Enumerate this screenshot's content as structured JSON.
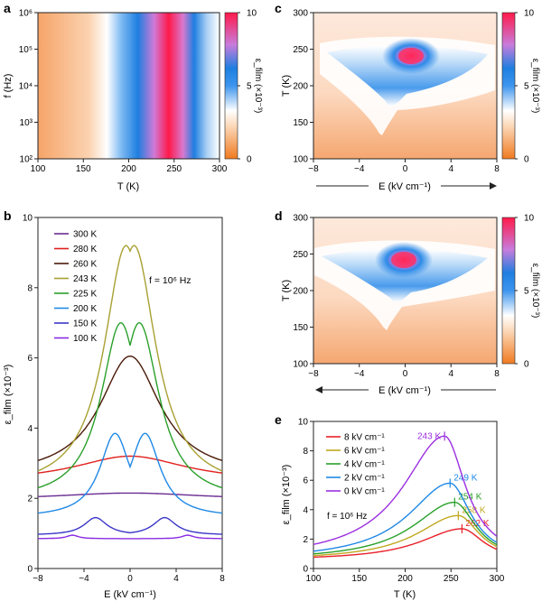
{
  "chart_data": [
    {
      "panel": "a",
      "type": "heatmap",
      "xlabel": "T (K)",
      "ylabel": "f (Hz)",
      "colorbar_label": "ε_film (×10⁻³)",
      "xlim": [
        100,
        300
      ],
      "xticks": [
        "100",
        "150",
        "200",
        "250",
        "300"
      ],
      "ylim_log10": [
        2,
        6
      ],
      "yticks": [
        "10²",
        "10³",
        "10⁴",
        "10⁵",
        "10⁶"
      ],
      "clim": [
        0,
        10
      ],
      "colorbar_ticks": [
        "0",
        "5",
        "10"
      ],
      "colormap": [
        "#f07a20",
        "#ffffff",
        "#1e7fe0",
        "#ff1a4a"
      ],
      "peak_T": 245
    },
    {
      "panel": "b",
      "type": "line",
      "xlabel": "E (kV cm⁻¹)",
      "ylabel": "ε_film (×10⁻³)",
      "xlim": [
        -8,
        8
      ],
      "ylim": [
        0,
        10
      ],
      "xticks": [
        "−8",
        "−4",
        "0",
        "4",
        "8"
      ],
      "yticks": [
        "0",
        "2",
        "4",
        "6",
        "8",
        "10"
      ],
      "annotation": "f = 10⁶ Hz",
      "legend_position": "top-left",
      "series": [
        {
          "name": "300 K",
          "color": "#6a2c91",
          "peaks": [
            0
          ],
          "height": 2.15,
          "base": 1.95,
          "width": 8
        },
        {
          "name": "280 K",
          "color": "#e0201e",
          "peaks": [
            0
          ],
          "height": 3.2,
          "base": 2.45,
          "width": 6
        },
        {
          "name": "260 K",
          "color": "#4a1a08",
          "peaks": [
            0
          ],
          "height": 6.05,
          "base": 2.6,
          "width": 3.2
        },
        {
          "name": "243 K",
          "color": "#a8a032",
          "peaks": [
            -0.35,
            0.35
          ],
          "height": 9.2,
          "base": 2.2,
          "width": 2.3
        },
        {
          "name": "225 K",
          "color": "#2aa02a",
          "peaks": [
            -0.8,
            0.8
          ],
          "height": 7.0,
          "base": 1.9,
          "width": 2.1
        },
        {
          "name": "200 K",
          "color": "#1e88e5",
          "peaks": [
            -1.3,
            1.3
          ],
          "height": 3.85,
          "base": 1.45,
          "width": 1.6
        },
        {
          "name": "150 K",
          "color": "#3a35c8",
          "peaks": [
            -3,
            3
          ],
          "height": 1.45,
          "base": 0.95,
          "width": 1.2
        },
        {
          "name": "100 K",
          "color": "#8a2be2",
          "peaks": [
            -5,
            5
          ],
          "height": 0.95,
          "base": 0.85,
          "width": 0.6
        }
      ]
    },
    {
      "panel": "c",
      "type": "heatmap",
      "xlabel": "E (kV cm⁻¹)",
      "ylabel": "T (K)",
      "colorbar_label": "ε_film (×10⁻³)",
      "xlim": [
        -8,
        8
      ],
      "ylim": [
        100,
        300
      ],
      "xticks": [
        "−8",
        "−4",
        "0",
        "4",
        "8"
      ],
      "yticks": [
        "100",
        "150",
        "200",
        "250",
        "300"
      ],
      "clim": [
        0,
        10
      ],
      "colorbar_ticks": [
        "0",
        "5",
        "10"
      ],
      "sweep_direction": "right",
      "hotspot": {
        "E": 0.5,
        "T": 240
      }
    },
    {
      "panel": "d",
      "type": "heatmap",
      "xlabel": "E (kV cm⁻¹)",
      "ylabel": "T (K)",
      "colorbar_label": "ε_film (×10⁻³)",
      "xlim": [
        -8,
        8
      ],
      "ylim": [
        100,
        300
      ],
      "xticks": [
        "−8",
        "−4",
        "0",
        "4",
        "8"
      ],
      "yticks": [
        "100",
        "150",
        "200",
        "250",
        "300"
      ],
      "clim": [
        0,
        10
      ],
      "colorbar_ticks": [
        "0",
        "5",
        "10"
      ],
      "sweep_direction": "left",
      "hotspot": {
        "E": -0.3,
        "T": 240
      }
    },
    {
      "panel": "e",
      "type": "line",
      "xlabel": "T (K)",
      "ylabel": "ε_film (×10⁻³)",
      "xlim": [
        100,
        300
      ],
      "ylim": [
        0,
        10
      ],
      "xticks": [
        "100",
        "150",
        "200",
        "250",
        "300"
      ],
      "yticks": [
        "0",
        "2",
        "4",
        "6",
        "8",
        "10"
      ],
      "annotation": "f = 10⁶ Hz",
      "legend_position": "top-left",
      "series": [
        {
          "name": "8 kV cm⁻¹",
          "color": "#e8202a",
          "peak_T": 262,
          "peak": 2.7,
          "peak_label": "262 K"
        },
        {
          "name": "6 kV cm⁻¹",
          "color": "#c0a820",
          "peak_T": 258,
          "peak": 3.6,
          "peak_label": "258 K"
        },
        {
          "name": "4 kV cm⁻¹",
          "color": "#2aa02a",
          "peak_T": 254,
          "peak": 4.5,
          "peak_label": "254 K"
        },
        {
          "name": "2 kV cm⁻¹",
          "color": "#1e88e5",
          "peak_T": 249,
          "peak": 5.8,
          "peak_label": "249 K"
        },
        {
          "name": "0 kV cm⁻¹",
          "color": "#9b30e0",
          "peak_T": 243,
          "peak": 9.0,
          "peak_label": "243 K"
        }
      ]
    }
  ]
}
